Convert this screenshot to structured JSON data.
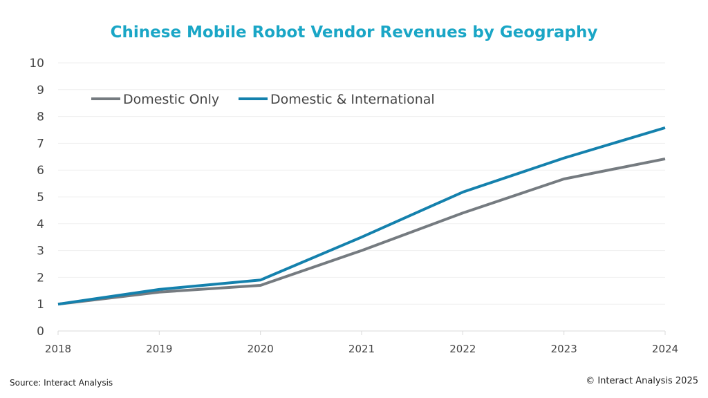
{
  "chart_data": {
    "type": "line",
    "title": "Chinese Mobile Robot Vendor Revenues by Geography",
    "xlabel": "",
    "ylabel": "",
    "categories": [
      "2018",
      "2019",
      "2020",
      "2021",
      "2022",
      "2023",
      "2024"
    ],
    "ylim": [
      0,
      10
    ],
    "yticks": [
      "0",
      "1",
      "2",
      "3",
      "4",
      "5",
      "6",
      "7",
      "8",
      "9",
      "10"
    ],
    "grid": true,
    "legend_position": "top-left",
    "series": [
      {
        "name": "Domestic Only",
        "color": "#757b80",
        "values": [
          1.0,
          1.45,
          1.7,
          3.0,
          4.4,
          5.67,
          6.42
        ]
      },
      {
        "name": "Domestic & International",
        "color": "#1481ad",
        "values": [
          1.0,
          1.55,
          1.9,
          3.5,
          5.18,
          6.45,
          7.58
        ]
      }
    ]
  },
  "footer": {
    "source": "Source: Interact Analysis",
    "copyright": "© Interact Analysis 2025"
  }
}
